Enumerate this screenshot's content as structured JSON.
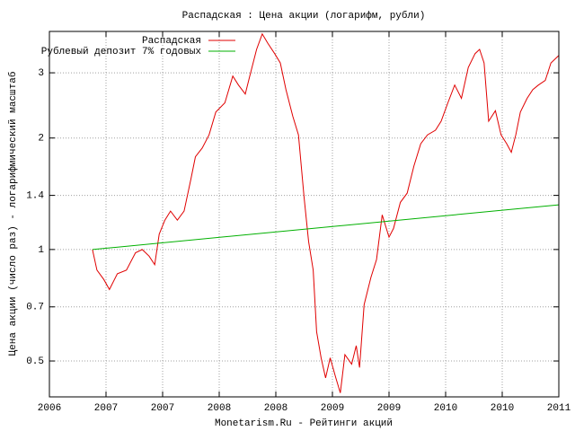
{
  "chart_data": {
    "type": "line",
    "title": "Распадская : Цена акции (логарифм, рубли)",
    "x_label": "Monetarism.Ru - Рейтинги акций",
    "y_label": "Цена акции (число раз) - логарифмический масштаб",
    "log_y": true,
    "grid": true,
    "legend": "top-left",
    "xlim": [
      2006.5,
      2011.0
    ],
    "xticks": [
      {
        "value": 2006.5,
        "label": "2006"
      },
      2007,
      {
        "value": 2007.5,
        "label": "2007"
      },
      2008,
      {
        "value": 2008.5,
        "label": "2008"
      },
      2009,
      {
        "value": 2009.5,
        "label": "2009"
      },
      2010,
      {
        "value": 2010.5,
        "label": "2010"
      },
      2011
    ],
    "ylim": [
      0.4,
      3.88
    ],
    "yticks": [
      0.5,
      0.7,
      1,
      1.4,
      2,
      3
    ],
    "series": [
      {
        "name": "Распадская",
        "color": "#e00000",
        "x": [
          2006.88,
          2006.92,
          2006.98,
          2007.03,
          2007.1,
          2007.18,
          2007.26,
          2007.32,
          2007.38,
          2007.43,
          2007.47,
          2007.52,
          2007.57,
          2007.63,
          2007.69,
          2007.75,
          2007.79,
          2007.85,
          2007.91,
          2007.97,
          2008.05,
          2008.12,
          2008.17,
          2008.23,
          2008.27,
          2008.33,
          2008.38,
          2008.43,
          2008.49,
          2008.54,
          2008.59,
          2008.65,
          2008.7,
          2008.75,
          2008.79,
          2008.83,
          2008.86,
          2008.9,
          2008.94,
          2008.98,
          2009.03,
          2009.07,
          2009.11,
          2009.17,
          2009.21,
          2009.24,
          2009.28,
          2009.34,
          2009.39,
          2009.44,
          2009.5,
          2009.54,
          2009.6,
          2009.66,
          2009.72,
          2009.78,
          2009.84,
          2009.91,
          2009.96,
          2010.02,
          2010.08,
          2010.14,
          2010.2,
          2010.26,
          2010.3,
          2010.34,
          2010.38,
          2010.44,
          2010.49,
          2010.54,
          2010.58,
          2010.62,
          2010.66,
          2010.72,
          2010.77,
          2010.82,
          2010.88,
          2010.93,
          2011.0
        ],
        "values": [
          1.0,
          0.88,
          0.83,
          0.78,
          0.86,
          0.88,
          0.98,
          1.0,
          0.96,
          0.91,
          1.1,
          1.2,
          1.27,
          1.2,
          1.27,
          1.55,
          1.78,
          1.88,
          2.04,
          2.35,
          2.49,
          2.94,
          2.78,
          2.63,
          2.94,
          3.47,
          3.82,
          3.6,
          3.38,
          3.19,
          2.7,
          2.29,
          2.04,
          1.38,
          1.05,
          0.88,
          0.6,
          0.51,
          0.45,
          0.51,
          0.45,
          0.41,
          0.52,
          0.49,
          0.55,
          0.48,
          0.71,
          0.84,
          0.94,
          1.24,
          1.08,
          1.14,
          1.34,
          1.42,
          1.68,
          1.93,
          2.04,
          2.1,
          2.22,
          2.49,
          2.78,
          2.56,
          3.1,
          3.38,
          3.47,
          3.19,
          2.22,
          2.37,
          2.04,
          1.93,
          1.83,
          2.04,
          2.35,
          2.56,
          2.7,
          2.78,
          2.86,
          3.19,
          3.34
        ]
      },
      {
        "name": "Рублевый депозит 7% годовых",
        "color": "#00b000",
        "x": [
          2006.88,
          2011.0
        ],
        "values": [
          1.0,
          1.32
        ]
      }
    ]
  }
}
